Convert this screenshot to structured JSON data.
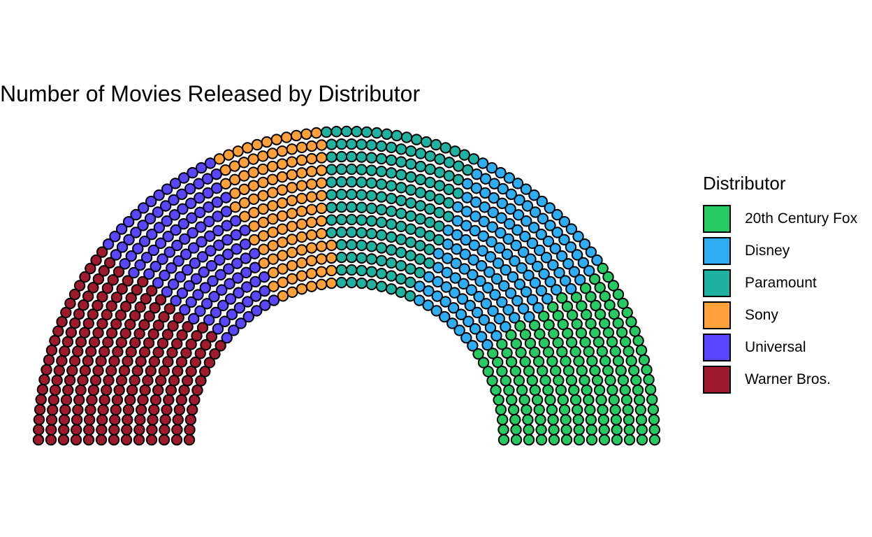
{
  "chart_data": {
    "type": "parliament",
    "title": "Number of Movies Released by Distributor",
    "legend_title": "Distributor",
    "legend_position": "right",
    "rows": 13,
    "series": [
      {
        "name": "20th Century Fox",
        "value": 184,
        "color": "#26C962"
      },
      {
        "name": "Disney",
        "value": 164,
        "color": "#2EADF3"
      },
      {
        "name": "Paramount",
        "value": 155,
        "color": "#20B2A0"
      },
      {
        "name": "Sony",
        "value": 113,
        "color": "#FFA03A"
      },
      {
        "name": "Universal",
        "value": 138,
        "color": "#5A46FF"
      },
      {
        "name": "Warner Bros.",
        "value": 207,
        "color": "#9E1A2C"
      }
    ],
    "order_left_to_right": [
      "Warner Bros.",
      "Universal",
      "Sony",
      "Paramount",
      "Disney",
      "20th Century Fox"
    ]
  }
}
